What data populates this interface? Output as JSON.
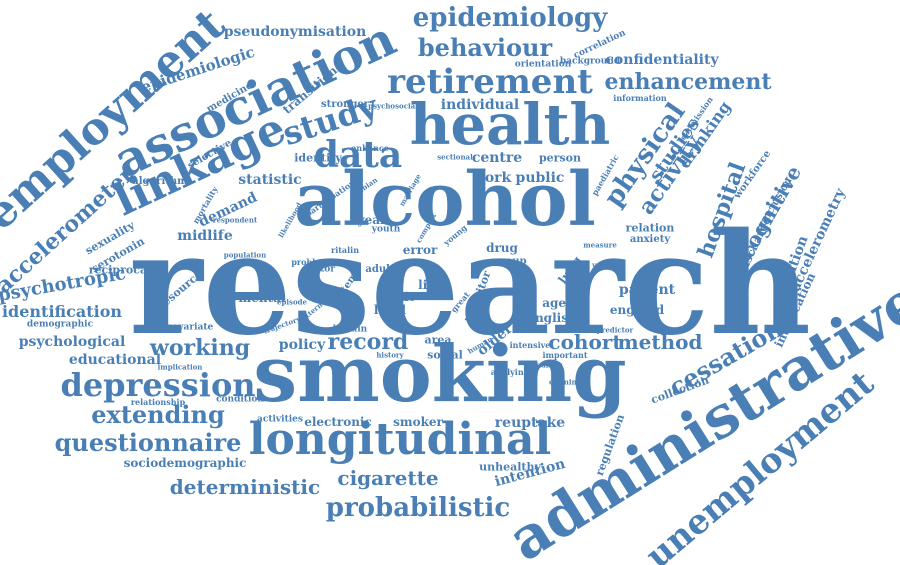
{
  "accent_color": "#4a7fb5",
  "background_color": "#ffffff",
  "words": [
    "research",
    "smoking",
    "alcohol",
    "health",
    "administrative",
    "longitudinal",
    "association",
    "linkage",
    "employment",
    "retirement",
    "unemployment",
    "depression",
    "data",
    "study",
    "epidemiology",
    "behaviour",
    "enhancement",
    "confidentiality",
    "pseudonymisation",
    "epidemiologic",
    "accelerometer",
    "physical",
    "hospital",
    "cognitive",
    "activity",
    "studies",
    "drinking",
    "cessation",
    "method",
    "cohort",
    "record",
    "working",
    "extending",
    "questionnaire",
    "deterministic",
    "probabilistic",
    "cigarette",
    "intention",
    "psychotropic",
    "identification",
    "psychological",
    "educational",
    "sociodemographic",
    "accelerometry",
    "intoxication",
    "evaluation",
    "discharge",
    "conclusion",
    "workforce",
    "collection",
    "regulation",
    "unhealthy",
    "reuptake",
    "smoker",
    "electronic",
    "policy",
    "area",
    "social",
    "older",
    "english",
    "patient",
    "england",
    "ageing",
    "lung",
    "inhibitor",
    "exit",
    "local",
    "live",
    "mental",
    "resource",
    "midlife",
    "demand",
    "statistic",
    "selective",
    "sexuality",
    "serotonin",
    "algorithm",
    "medicine",
    "transition",
    "stronger",
    "individual",
    "identity",
    "centre",
    "work",
    "public",
    "person",
    "year",
    "error",
    "drug",
    "relation",
    "anxiety",
    "correlation",
    "background",
    "orientation",
    "information",
    "readmission",
    "paediatric",
    "reciprocal",
    "demographic",
    "covariate",
    "condition",
    "relationship",
    "activities",
    "britain",
    "system",
    "factor",
    "problem",
    "adult",
    "group",
    "youth",
    "mortality",
    "respondent",
    "enhance",
    "sectional",
    "lesbian",
    "participation",
    "predictor",
    "important",
    "applying",
    "intensive",
    "history",
    "human",
    "implication",
    "accuracy",
    "measure",
    "great",
    "young",
    "episode",
    "likelihood",
    "population",
    "psychosocial",
    "ritalin",
    "pattern",
    "complex",
    "marriage",
    "cotinine",
    "variable",
    "trajectory"
  ]
}
